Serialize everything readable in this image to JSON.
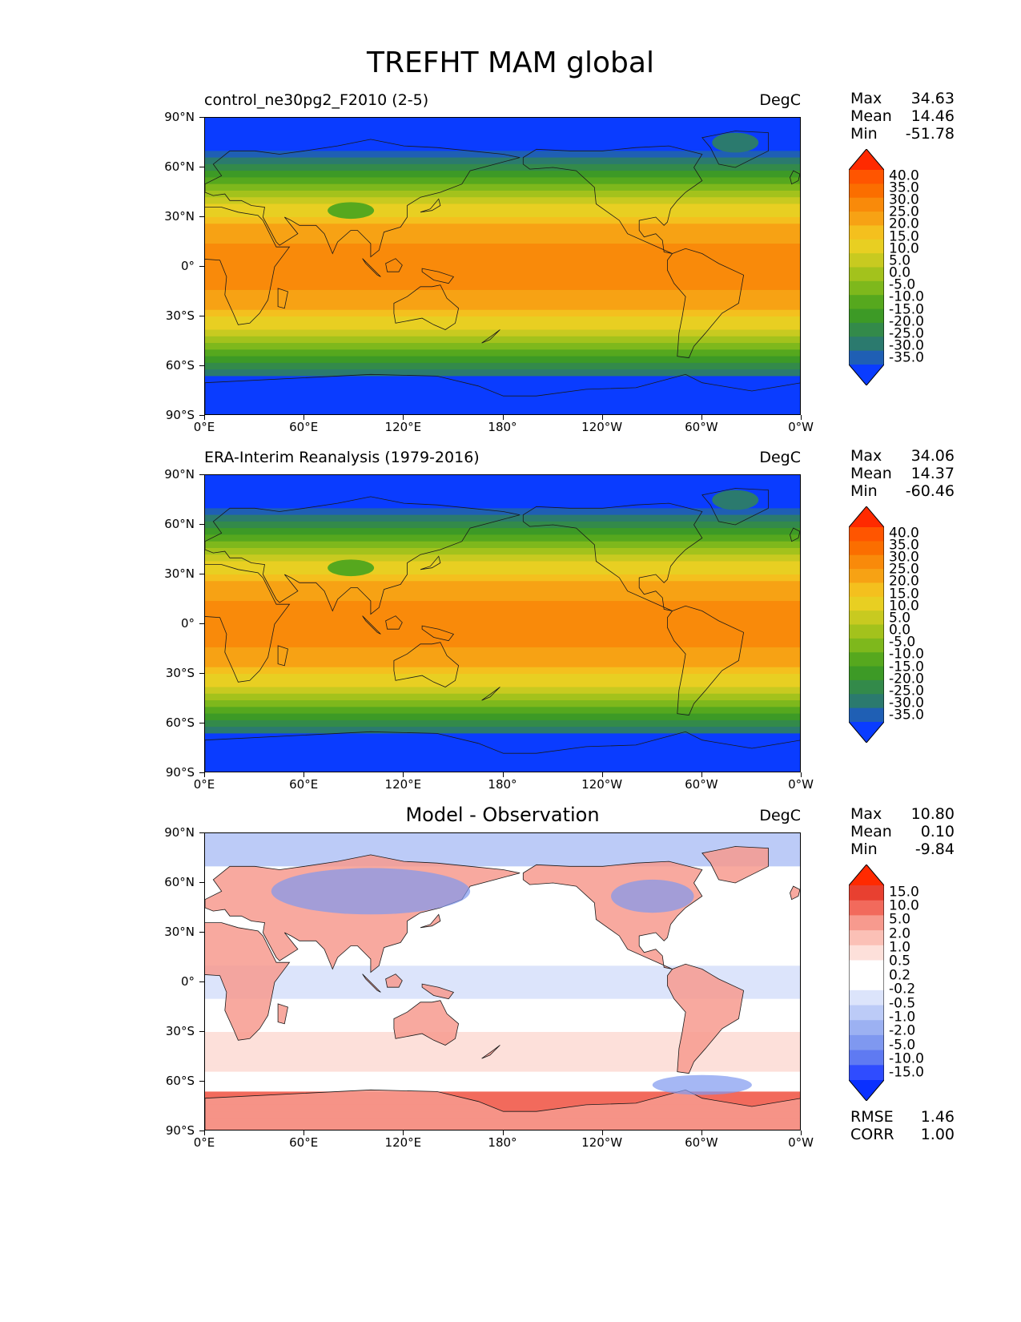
{
  "figure": {
    "title": "TREFHT MAM global"
  },
  "axes": {
    "yticks": [
      "90°N",
      "60°N",
      "30°N",
      "0°",
      "30°S",
      "60°S",
      "90°S"
    ],
    "xticks": [
      "0°E",
      "60°E",
      "120°E",
      "180°",
      "120°W",
      "60°W",
      "0°W"
    ]
  },
  "panels": [
    {
      "title": "control_ne30pg2_F2010 (2-5)",
      "title_style": "left",
      "units": "DegC",
      "stats": [
        {
          "label": "Max",
          "value": "34.63"
        },
        {
          "label": "Mean",
          "value": "14.46"
        },
        {
          "label": "Min",
          "value": "-51.78"
        }
      ],
      "colorbar_labels": [
        "40.0",
        "35.0",
        "30.0",
        "25.0",
        "20.0",
        "15.0",
        "10.0",
        "5.0",
        "0.0",
        "-5.0",
        "-10.0",
        "-15.0",
        "-20.0",
        "-25.0",
        "-30.0",
        "-35.0"
      ],
      "cmap": "temp"
    },
    {
      "title": "ERA-Interim Reanalysis (1979-2016)",
      "title_style": "left",
      "units": "DegC",
      "stats": [
        {
          "label": "Max",
          "value": "34.06"
        },
        {
          "label": "Mean",
          "value": "14.37"
        },
        {
          "label": "Min",
          "value": "-60.46"
        }
      ],
      "colorbar_labels": [
        "40.0",
        "35.0",
        "30.0",
        "25.0",
        "20.0",
        "15.0",
        "10.0",
        "5.0",
        "0.0",
        "-5.0",
        "-10.0",
        "-15.0",
        "-20.0",
        "-25.0",
        "-30.0",
        "-35.0"
      ],
      "cmap": "temp"
    },
    {
      "title": "Model - Observation",
      "title_style": "center",
      "units": "DegC",
      "stats": [
        {
          "label": "Max",
          "value": "10.80"
        },
        {
          "label": "Mean",
          "value": "0.10"
        },
        {
          "label": "Min",
          "value": "-9.84"
        }
      ],
      "colorbar_labels": [
        "15.0",
        "10.0",
        "5.0",
        "2.0",
        "1.0",
        "0.5",
        "0.2",
        "-0.2",
        "-0.5",
        "-1.0",
        "-2.0",
        "-5.0",
        "-10.0",
        "-15.0"
      ],
      "cmap": "diff",
      "extra_stats": [
        {
          "label": "RMSE",
          "value": "1.46"
        },
        {
          "label": "CORR",
          "value": "1.00"
        }
      ]
    }
  ],
  "colormaps": {
    "temp": [
      "#ff2a00",
      "#ff5500",
      "#fb6e00",
      "#f98a0a",
      "#f7a214",
      "#f4c01e",
      "#e8cf22",
      "#c8ca20",
      "#a3c21c",
      "#7eb81c",
      "#56a81e",
      "#3d9a26",
      "#338a4a",
      "#2b7a6e",
      "#1f5fb4",
      "#0a3cff"
    ],
    "diff": [
      "#ff2a00",
      "#e84030",
      "#f26a5c",
      "#f79a8e",
      "#fbc0b6",
      "#fde0da",
      "#ffffff",
      "#ffffff",
      "#dce4fb",
      "#bccbf7",
      "#9cb1f2",
      "#7f98f0",
      "#5f7af2",
      "#2f4cff",
      "#0a30ff"
    ]
  }
}
